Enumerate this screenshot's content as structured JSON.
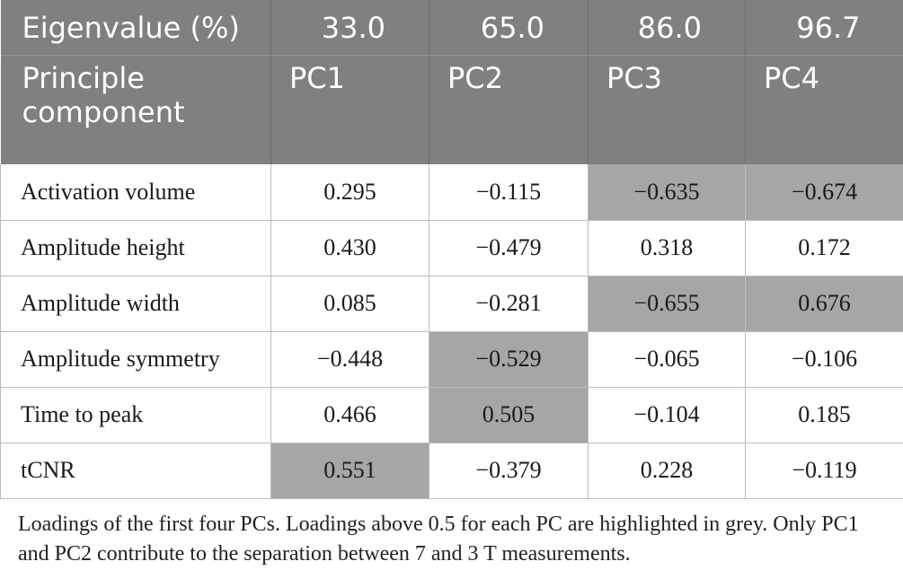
{
  "header": {
    "eigen_label": "Eigenvalue (%)",
    "eigenvalues": [
      "33.0",
      "65.0",
      "86.0",
      "96.7"
    ],
    "pc_label_line1": "Principle",
    "pc_label_line2": "component",
    "pcs": [
      "PC1",
      "PC2",
      "PC3",
      "PC4"
    ]
  },
  "rows": [
    {
      "label": "Activation volume",
      "values": [
        "0.295",
        "−0.115",
        "−0.635",
        "−0.674"
      ],
      "highlighted": [
        false,
        false,
        true,
        true
      ]
    },
    {
      "label": "Amplitude height",
      "values": [
        "0.430",
        "−0.479",
        "0.318",
        "0.172"
      ],
      "highlighted": [
        false,
        false,
        false,
        false
      ]
    },
    {
      "label": "Amplitude width",
      "values": [
        "0.085",
        "−0.281",
        "−0.655",
        "0.676"
      ],
      "highlighted": [
        false,
        false,
        true,
        true
      ]
    },
    {
      "label": "Amplitude symmetry",
      "values": [
        "−0.448",
        "−0.529",
        "−0.065",
        "−0.106"
      ],
      "highlighted": [
        false,
        true,
        false,
        false
      ]
    },
    {
      "label": "Time to peak",
      "values": [
        "0.466",
        "0.505",
        "−0.104",
        "0.185"
      ],
      "highlighted": [
        false,
        true,
        false,
        false
      ]
    },
    {
      "label": "tCNR",
      "values": [
        "0.551",
        "−0.379",
        "0.228",
        "−0.119"
      ],
      "highlighted": [
        true,
        false,
        false,
        false
      ]
    }
  ],
  "caption": "Loadings of the first four PCs. Loadings above 0.5 for each PC are highlighted in grey. Only PC1 and PC2 contribute to the separation between 7 and 3 T measurements.",
  "colors": {
    "header_bg": "#808080",
    "highlight": "#a6a6a6"
  }
}
